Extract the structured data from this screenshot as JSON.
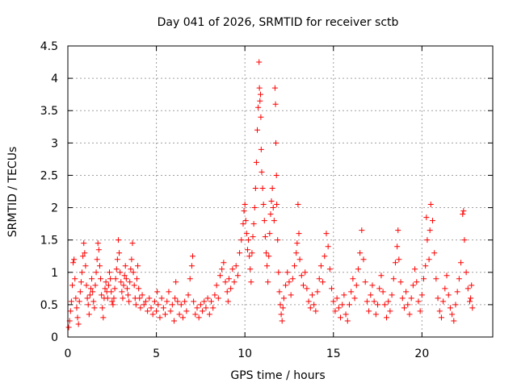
{
  "chart_data": {
    "type": "scatter",
    "title": "Day 041 of 2026, SRMTID for receiver sctb",
    "xlabel": "GPS time / hours",
    "ylabel": "SRMTID / TECUs",
    "xlim": [
      0,
      24
    ],
    "ylim": [
      0,
      4.5
    ],
    "x_ticks": [
      0,
      5,
      10,
      15,
      20
    ],
    "x_tick_labels": [
      "0",
      "5",
      "10",
      "15",
      "20"
    ],
    "y_ticks": [
      0,
      0.5,
      1,
      1.5,
      2,
      2.5,
      3,
      3.5,
      4,
      4.5
    ],
    "y_tick_labels": [
      "0",
      "0.5",
      "1",
      "1.5",
      "2",
      "2.5",
      "3",
      "3.5",
      "4",
      "4.5"
    ],
    "grid": true,
    "marker": "+",
    "colors": {
      "series": "#ff0000",
      "grid": "#a0a0a0",
      "axis": "#000000"
    },
    "series": [
      {
        "name": "SRMTID",
        "points": [
          [
            0.05,
            0.15
          ],
          [
            0.1,
            0.25
          ],
          [
            0.15,
            0.4
          ],
          [
            0.2,
            0.55
          ],
          [
            0.25,
            0.8
          ],
          [
            0.3,
            1.15
          ],
          [
            0.35,
            1.2
          ],
          [
            0.4,
            0.9
          ],
          [
            0.45,
            0.6
          ],
          [
            0.5,
            0.45
          ],
          [
            0.55,
            0.3
          ],
          [
            0.6,
            0.2
          ],
          [
            0.65,
            0.55
          ],
          [
            0.7,
            0.7
          ],
          [
            0.75,
            0.85
          ],
          [
            0.8,
            1.0
          ],
          [
            0.85,
            1.25
          ],
          [
            0.9,
            1.45
          ],
          [
            0.95,
            1.3
          ],
          [
            1.0,
            1.1
          ],
          [
            1.05,
            0.8
          ],
          [
            1.1,
            0.6
          ],
          [
            1.15,
            0.5
          ],
          [
            1.2,
            0.35
          ],
          [
            1.25,
            0.65
          ],
          [
            1.3,
            0.75
          ],
          [
            1.35,
            0.9
          ],
          [
            1.4,
            0.7
          ],
          [
            1.45,
            0.55
          ],
          [
            1.5,
            0.45
          ],
          [
            1.55,
            0.8
          ],
          [
            1.6,
            1.0
          ],
          [
            1.65,
            1.2
          ],
          [
            1.7,
            1.45
          ],
          [
            1.75,
            1.35
          ],
          [
            1.8,
            1.1
          ],
          [
            1.85,
            0.9
          ],
          [
            1.9,
            0.65
          ],
          [
            1.95,
            0.45
          ],
          [
            2.0,
            0.3
          ],
          [
            2.05,
            0.6
          ],
          [
            2.1,
            0.75
          ],
          [
            2.15,
            0.85
          ],
          [
            2.2,
            0.7
          ],
          [
            2.25,
            0.6
          ],
          [
            2.3,
            0.8
          ],
          [
            2.35,
            1.0
          ],
          [
            2.4,
            0.9
          ],
          [
            2.45,
            0.7
          ],
          [
            2.5,
            0.55
          ],
          [
            2.55,
            0.5
          ],
          [
            2.6,
            0.6
          ],
          [
            2.65,
            0.75
          ],
          [
            2.7,
            0.9
          ],
          [
            2.75,
            1.05
          ],
          [
            2.8,
            1.2
          ],
          [
            2.85,
            1.5
          ],
          [
            2.9,
            1.3
          ],
          [
            2.95,
            1.0
          ],
          [
            3.0,
            0.85
          ],
          [
            3.05,
            0.7
          ],
          [
            3.1,
            0.6
          ],
          [
            3.15,
            0.8
          ],
          [
            3.2,
            0.95
          ],
          [
            3.25,
            1.1
          ],
          [
            3.3,
            0.9
          ],
          [
            3.35,
            0.75
          ],
          [
            3.4,
            0.65
          ],
          [
            3.45,
            0.55
          ],
          [
            3.5,
            0.85
          ],
          [
            3.55,
            1.05
          ],
          [
            3.6,
            1.2
          ],
          [
            3.65,
            1.45
          ],
          [
            3.7,
            1.0
          ],
          [
            3.75,
            0.8
          ],
          [
            3.8,
            0.6
          ],
          [
            3.85,
            0.5
          ],
          [
            3.9,
            0.9
          ],
          [
            3.95,
            1.1
          ],
          [
            4.0,
            0.75
          ],
          [
            4.05,
            0.6
          ],
          [
            4.1,
            0.45
          ],
          [
            4.2,
            0.65
          ],
          [
            4.3,
            0.5
          ],
          [
            4.4,
            0.55
          ],
          [
            4.5,
            0.4
          ],
          [
            4.6,
            0.6
          ],
          [
            4.7,
            0.45
          ],
          [
            4.8,
            0.35
          ],
          [
            4.9,
            0.55
          ],
          [
            5.0,
            0.4
          ],
          [
            5.05,
            0.7
          ],
          [
            5.1,
            0.5
          ],
          [
            5.2,
            0.3
          ],
          [
            5.3,
            0.6
          ],
          [
            5.4,
            0.45
          ],
          [
            5.5,
            0.35
          ],
          [
            5.6,
            0.55
          ],
          [
            5.7,
            0.7
          ],
          [
            5.8,
            0.4
          ],
          [
            5.9,
            0.5
          ],
          [
            6.0,
            0.25
          ],
          [
            6.05,
            0.6
          ],
          [
            6.1,
            0.85
          ],
          [
            6.2,
            0.55
          ],
          [
            6.3,
            0.35
          ],
          [
            6.4,
            0.5
          ],
          [
            6.5,
            0.3
          ],
          [
            6.6,
            0.55
          ],
          [
            6.7,
            0.4
          ],
          [
            6.8,
            0.65
          ],
          [
            6.9,
            0.9
          ],
          [
            7.0,
            1.1
          ],
          [
            7.05,
            1.25
          ],
          [
            7.1,
            0.55
          ],
          [
            7.2,
            0.35
          ],
          [
            7.3,
            0.45
          ],
          [
            7.4,
            0.3
          ],
          [
            7.5,
            0.5
          ],
          [
            7.6,
            0.4
          ],
          [
            7.7,
            0.55
          ],
          [
            7.8,
            0.45
          ],
          [
            7.9,
            0.6
          ],
          [
            8.0,
            0.35
          ],
          [
            8.1,
            0.55
          ],
          [
            8.2,
            0.45
          ],
          [
            8.3,
            0.65
          ],
          [
            8.4,
            0.8
          ],
          [
            8.5,
            0.6
          ],
          [
            8.6,
            0.95
          ],
          [
            8.7,
            1.05
          ],
          [
            8.8,
            1.15
          ],
          [
            8.9,
            0.85
          ],
          [
            9.0,
            0.7
          ],
          [
            9.05,
            0.55
          ],
          [
            9.1,
            0.9
          ],
          [
            9.2,
            0.75
          ],
          [
            9.3,
            1.05
          ],
          [
            9.4,
            0.85
          ],
          [
            9.5,
            1.1
          ],
          [
            9.6,
            0.95
          ],
          [
            9.7,
            1.3
          ],
          [
            9.8,
            1.5
          ],
          [
            9.9,
            1.75
          ],
          [
            9.95,
            1.95
          ],
          [
            10.0,
            2.05
          ],
          [
            10.05,
            1.8
          ],
          [
            10.1,
            1.6
          ],
          [
            10.15,
            1.35
          ],
          [
            10.2,
            1.5
          ],
          [
            10.25,
            1.25
          ],
          [
            10.3,
            1.05
          ],
          [
            10.35,
            0.85
          ],
          [
            10.4,
            1.3
          ],
          [
            10.45,
            1.55
          ],
          [
            10.5,
            1.75
          ],
          [
            10.55,
            2.0
          ],
          [
            10.6,
            2.3
          ],
          [
            10.65,
            2.7
          ],
          [
            10.7,
            3.2
          ],
          [
            10.75,
            3.55
          ],
          [
            10.8,
            4.25
          ],
          [
            10.82,
            3.85
          ],
          [
            10.85,
            3.65
          ],
          [
            10.88,
            3.75
          ],
          [
            10.9,
            3.4
          ],
          [
            10.92,
            2.9
          ],
          [
            10.95,
            2.55
          ],
          [
            11.0,
            2.3
          ],
          [
            11.05,
            2.05
          ],
          [
            11.1,
            1.8
          ],
          [
            11.15,
            1.55
          ],
          [
            11.2,
            1.3
          ],
          [
            11.25,
            1.1
          ],
          [
            11.3,
            0.85
          ],
          [
            11.35,
            1.25
          ],
          [
            11.4,
            1.6
          ],
          [
            11.45,
            1.9
          ],
          [
            11.5,
            2.1
          ],
          [
            11.55,
            2.3
          ],
          [
            11.6,
            2.0
          ],
          [
            11.65,
            1.8
          ],
          [
            11.7,
            3.85
          ],
          [
            11.73,
            3.6
          ],
          [
            11.75,
            3.0
          ],
          [
            11.78,
            2.5
          ],
          [
            11.8,
            2.05
          ],
          [
            11.85,
            1.5
          ],
          [
            11.9,
            1.0
          ],
          [
            11.95,
            0.7
          ],
          [
            12.0,
            0.5
          ],
          [
            12.05,
            0.35
          ],
          [
            12.1,
            0.25
          ],
          [
            12.15,
            0.45
          ],
          [
            12.2,
            0.6
          ],
          [
            12.3,
            0.8
          ],
          [
            12.4,
            1.0
          ],
          [
            12.5,
            0.85
          ],
          [
            12.6,
            0.65
          ],
          [
            12.7,
            0.9
          ],
          [
            12.8,
            1.1
          ],
          [
            12.9,
            1.3
          ],
          [
            12.95,
            1.45
          ],
          [
            13.0,
            2.05
          ],
          [
            13.05,
            1.6
          ],
          [
            13.1,
            1.2
          ],
          [
            13.2,
            0.95
          ],
          [
            13.3,
            0.8
          ],
          [
            13.4,
            1.0
          ],
          [
            13.5,
            0.75
          ],
          [
            13.6,
            0.55
          ],
          [
            13.7,
            0.45
          ],
          [
            13.8,
            0.65
          ],
          [
            13.9,
            0.5
          ],
          [
            14.0,
            0.4
          ],
          [
            14.1,
            0.7
          ],
          [
            14.2,
            0.9
          ],
          [
            14.3,
            1.1
          ],
          [
            14.4,
            0.85
          ],
          [
            14.5,
            1.25
          ],
          [
            14.6,
            1.6
          ],
          [
            14.7,
            1.4
          ],
          [
            14.8,
            1.05
          ],
          [
            14.9,
            0.75
          ],
          [
            15.0,
            0.55
          ],
          [
            15.1,
            0.4
          ],
          [
            15.2,
            0.6
          ],
          [
            15.3,
            0.45
          ],
          [
            15.4,
            0.3
          ],
          [
            15.5,
            0.5
          ],
          [
            15.6,
            0.65
          ],
          [
            15.7,
            0.35
          ],
          [
            15.8,
            0.25
          ],
          [
            15.9,
            0.5
          ],
          [
            16.0,
            0.7
          ],
          [
            16.1,
            0.9
          ],
          [
            16.2,
            0.6
          ],
          [
            16.3,
            0.8
          ],
          [
            16.4,
            1.05
          ],
          [
            16.5,
            1.3
          ],
          [
            16.6,
            1.65
          ],
          [
            16.7,
            1.2
          ],
          [
            16.8,
            0.85
          ],
          [
            16.9,
            0.55
          ],
          [
            17.0,
            0.4
          ],
          [
            17.1,
            0.65
          ],
          [
            17.2,
            0.8
          ],
          [
            17.3,
            0.55
          ],
          [
            17.4,
            0.35
          ],
          [
            17.5,
            0.5
          ],
          [
            17.6,
            0.75
          ],
          [
            17.7,
            0.95
          ],
          [
            17.8,
            0.7
          ],
          [
            17.9,
            0.5
          ],
          [
            18.0,
            0.3
          ],
          [
            18.1,
            0.55
          ],
          [
            18.2,
            0.4
          ],
          [
            18.3,
            0.65
          ],
          [
            18.4,
            0.9
          ],
          [
            18.5,
            1.15
          ],
          [
            18.6,
            1.4
          ],
          [
            18.65,
            1.65
          ],
          [
            18.7,
            1.2
          ],
          [
            18.8,
            0.85
          ],
          [
            18.9,
            0.6
          ],
          [
            19.0,
            0.45
          ],
          [
            19.1,
            0.7
          ],
          [
            19.2,
            0.5
          ],
          [
            19.3,
            0.35
          ],
          [
            19.4,
            0.6
          ],
          [
            19.5,
            0.8
          ],
          [
            19.6,
            1.05
          ],
          [
            19.7,
            0.85
          ],
          [
            19.8,
            0.55
          ],
          [
            19.9,
            0.4
          ],
          [
            20.0,
            0.65
          ],
          [
            20.1,
            0.9
          ],
          [
            20.2,
            1.1
          ],
          [
            20.25,
            1.85
          ],
          [
            20.3,
            1.5
          ],
          [
            20.4,
            1.2
          ],
          [
            20.45,
            1.65
          ],
          [
            20.5,
            2.05
          ],
          [
            20.6,
            1.8
          ],
          [
            20.7,
            1.3
          ],
          [
            20.8,
            0.9
          ],
          [
            20.9,
            0.6
          ],
          [
            21.0,
            0.4
          ],
          [
            21.1,
            0.3
          ],
          [
            21.2,
            0.55
          ],
          [
            21.3,
            0.75
          ],
          [
            21.4,
            0.95
          ],
          [
            21.5,
            0.65
          ],
          [
            21.6,
            0.45
          ],
          [
            21.7,
            0.35
          ],
          [
            21.8,
            0.25
          ],
          [
            21.9,
            0.5
          ],
          [
            22.0,
            0.7
          ],
          [
            22.1,
            0.9
          ],
          [
            22.2,
            1.15
          ],
          [
            22.3,
            1.9
          ],
          [
            22.35,
            1.95
          ],
          [
            22.4,
            1.5
          ],
          [
            22.5,
            1.0
          ],
          [
            22.6,
            0.75
          ],
          [
            22.7,
            0.55
          ],
          [
            22.75,
            0.6
          ],
          [
            22.8,
            0.8
          ],
          [
            22.85,
            0.45
          ]
        ]
      }
    ]
  }
}
